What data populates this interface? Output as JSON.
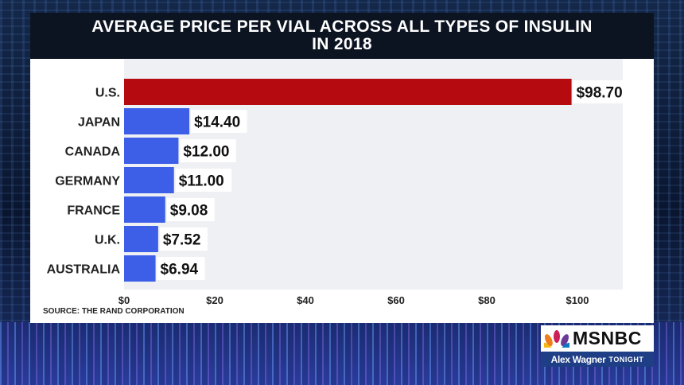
{
  "header": {
    "title_line1": "AVERAGE PRICE PER VIAL ACROSS ALL TYPES OF INSULIN",
    "title_line2": "IN 2018"
  },
  "source": "SOURCE: THE RAND CORPORATION",
  "branding": {
    "network": "MSNBC",
    "show_name": "Alex Wagner",
    "show_tag": "TONIGHT"
  },
  "chart_data": {
    "type": "bar",
    "orientation": "horizontal",
    "title": "AVERAGE PRICE PER VIAL ACROSS ALL TYPES OF INSULIN IN 2018",
    "categories": [
      "U.S.",
      "JAPAN",
      "CANADA",
      "GERMANY",
      "FRANCE",
      "U.K.",
      "AUSTRALIA"
    ],
    "values": [
      98.7,
      14.4,
      12.0,
      11.0,
      9.08,
      7.52,
      6.94
    ],
    "data_labels": [
      "$98.70",
      "$14.40",
      "$12.00",
      "$11.00",
      "$9.08",
      "$7.52",
      "$6.94"
    ],
    "bar_colors": [
      "#b50a0f",
      "#3d5fe8",
      "#3d5fe8",
      "#3d5fe8",
      "#3d5fe8",
      "#3d5fe8",
      "#3d5fe8"
    ],
    "xlim": [
      0,
      110
    ],
    "xticks": [
      0,
      20,
      40,
      60,
      80,
      100
    ],
    "xtick_labels": [
      "$0",
      "$20",
      "$40",
      "$60",
      "$80",
      "$100"
    ],
    "xlabel": "",
    "ylabel": "",
    "grid": false,
    "legend": "none"
  }
}
